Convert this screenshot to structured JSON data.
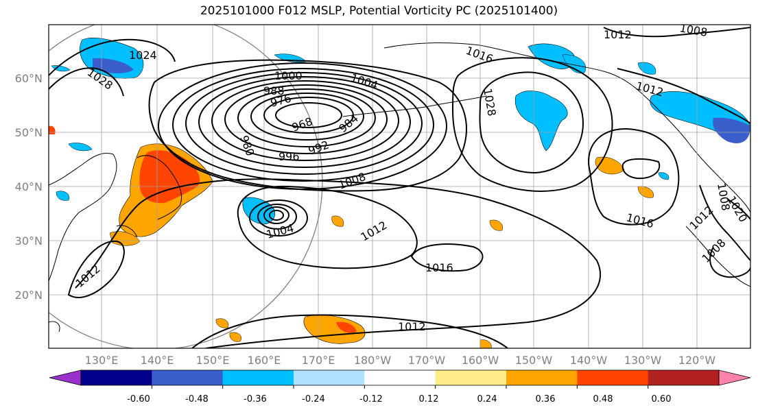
{
  "title": "2025101000 F012 MSLP, Potential Vorticity PC (2025101400)",
  "lat_labels": [
    "60°N",
    "50°N",
    "40°N",
    "30°N",
    "20°N"
  ],
  "lon_labels": [
    "130°E",
    "140°E",
    "150°E",
    "160°E",
    "170°E",
    "180°W",
    "170°W",
    "160°W",
    "150°W",
    "140°W",
    "130°W",
    "120°W"
  ],
  "contour_labels": [
    "1024",
    "1028",
    "1000",
    "1004",
    "988",
    "976",
    "968",
    "984",
    "980",
    "992",
    "996",
    "1008",
    "1012",
    "1016",
    "1028",
    "1004",
    "1012",
    "1016",
    "1012",
    "1012",
    "1016",
    "1008",
    "1012",
    "1012",
    "1008",
    "1008",
    "1020"
  ],
  "colorbar": {
    "ticks": [
      "-0.60",
      "-0.48",
      "-0.36",
      "-0.24",
      "-0.12",
      "0.12",
      "0.24",
      "0.36",
      "0.48",
      "0.60"
    ],
    "colors": [
      "#9932cc",
      "#00008b",
      "#3a5fcd",
      "#00bfff",
      "#b0e2ff",
      "#ffffff",
      "#ffec8b",
      "#ffa500",
      "#ff4500",
      "#b22222",
      "#ff82ab"
    ]
  },
  "colors": {
    "frame": "#000000",
    "grid": "#a0a0a0",
    "label_grey": "#808080"
  }
}
